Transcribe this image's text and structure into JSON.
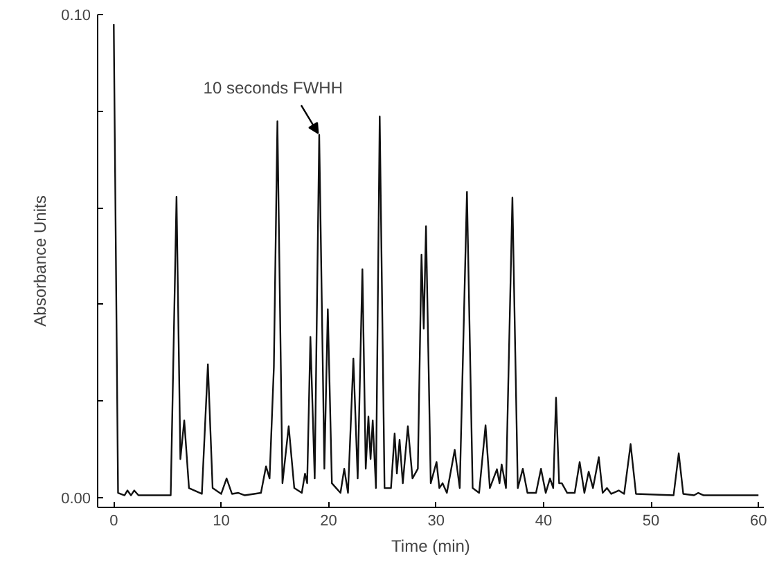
{
  "chart_data": {
    "type": "line",
    "xlabel": "Time (min)",
    "ylabel": "Absorbance Units",
    "xlim": [
      -1.5,
      60.5
    ],
    "ylim": [
      -0.002,
      0.1
    ],
    "xticks": [
      0,
      10,
      20,
      30,
      40,
      50,
      60
    ],
    "yticks": [
      {
        "value": 0,
        "label": "0.00"
      },
      {
        "value": 0.02,
        "label": null
      },
      {
        "value": 0.04,
        "label": null
      },
      {
        "value": 0.06,
        "label": null
      },
      {
        "value": 0.08,
        "label": null
      },
      {
        "value": 0.1,
        "label": "0.10"
      }
    ],
    "grid": false,
    "marker": "none",
    "line_style": "solid",
    "annotations": [
      {
        "text": "10 seconds FWHH",
        "x": 19.12,
        "y": 0.0751
      }
    ],
    "series": [
      {
        "color": "#111111",
        "x": [
          0,
          0.4,
          1.0,
          1.27,
          1.6,
          1.9,
          2.3,
          5.3,
          5.84,
          6.2,
          6.56,
          7.0,
          8.2,
          8.76,
          9.2,
          10.0,
          10.5,
          11.0,
          11.6,
          12.2,
          13.7,
          14.17,
          14.5,
          14.9,
          15.23,
          15.7,
          16.28,
          16.8,
          17.5,
          17.8,
          18.0,
          18.3,
          18.7,
          19.12,
          19.4,
          19.6,
          19.92,
          20.3,
          20.7,
          21.1,
          21.45,
          21.8,
          22.3,
          22.7,
          23.14,
          23.45,
          23.7,
          23.9,
          24.1,
          24.4,
          24.75,
          25.2,
          25.8,
          26.14,
          26.35,
          26.6,
          26.9,
          27.37,
          27.8,
          28.3,
          28.64,
          28.85,
          29.06,
          29.5,
          30.04,
          30.3,
          30.6,
          31.0,
          31.73,
          32.2,
          32.87,
          33.4,
          34.0,
          34.6,
          35.0,
          35.66,
          35.9,
          36.1,
          36.5,
          37.1,
          37.6,
          38.07,
          38.5,
          39.3,
          39.76,
          40.2,
          40.6,
          40.9,
          41.16,
          41.45,
          41.7,
          42.2,
          42.9,
          43.36,
          43.8,
          44.2,
          44.6,
          45.14,
          45.5,
          45.9,
          46.3,
          47.0,
          47.5,
          48.1,
          48.6,
          52.1,
          52.58,
          53.0,
          54.0,
          54.4,
          54.9,
          60
        ],
        "values": [
          0.098,
          0.001,
          0.0005,
          0.0015,
          0.0005,
          0.0015,
          0.0005,
          0.0005,
          0.0623,
          0.008,
          0.016,
          0.002,
          0.0008,
          0.0276,
          0.002,
          0.0008,
          0.004,
          0.0008,
          0.001,
          0.0005,
          0.001,
          0.0065,
          0.004,
          0.027,
          0.0779,
          0.003,
          0.0148,
          0.002,
          0.001,
          0.005,
          0.003,
          0.0333,
          0.004,
          0.0751,
          0.035,
          0.006,
          0.039,
          0.003,
          0.002,
          0.001,
          0.006,
          0.001,
          0.0288,
          0.004,
          0.0473,
          0.006,
          0.0168,
          0.008,
          0.016,
          0.002,
          0.0789,
          0.002,
          0.002,
          0.0133,
          0.005,
          0.012,
          0.003,
          0.0148,
          0.004,
          0.006,
          0.0503,
          0.035,
          0.0562,
          0.003,
          0.0074,
          0.002,
          0.003,
          0.001,
          0.0099,
          0.002,
          0.0633,
          0.002,
          0.001,
          0.015,
          0.002,
          0.0059,
          0.003,
          0.0069,
          0.002,
          0.0621,
          0.002,
          0.006,
          0.001,
          0.001,
          0.006,
          0.001,
          0.004,
          0.002,
          0.0207,
          0.003,
          0.003,
          0.001,
          0.001,
          0.0074,
          0.001,
          0.0054,
          0.002,
          0.0084,
          0.001,
          0.002,
          0.0008,
          0.0015,
          0.0008,
          0.0111,
          0.0008,
          0.0005,
          0.0092,
          0.0008,
          0.0005,
          0.001,
          0.0005,
          0.0005
        ]
      }
    ]
  }
}
